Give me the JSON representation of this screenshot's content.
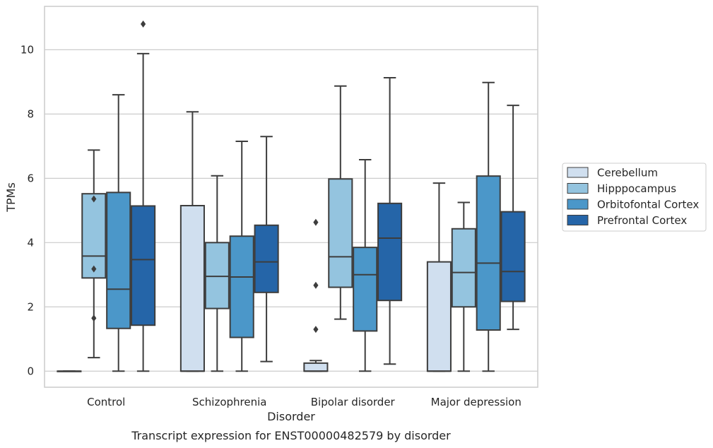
{
  "caption": "Transcript expression for ENST00000482579 by disorder",
  "chart_data": {
    "type": "box",
    "xlabel": "Disorder",
    "ylabel": "TPMs",
    "ylim": [
      -0.5,
      11.35
    ],
    "yticks": [
      0,
      2,
      4,
      6,
      8,
      10
    ],
    "grid": "horizontal",
    "legend_position": "right",
    "categories": [
      "Control",
      "Schizophrenia",
      "Bipolar disorder",
      "Major depression"
    ],
    "series": [
      {
        "name": "Cerebellum",
        "color": "#d0dfef",
        "boxes": [
          {
            "whislo": 0,
            "q1": 0,
            "med": 0,
            "q3": 0,
            "whishi": 0,
            "fliers": []
          },
          {
            "whislo": 0,
            "q1": 0,
            "med": 0,
            "q3": 5.15,
            "whishi": 8.07,
            "fliers": []
          },
          {
            "whislo": 0,
            "q1": 0,
            "med": 0,
            "q3": 0.25,
            "whishi": 0.33,
            "fliers": [
              1.3,
              2.67,
              4.63
            ]
          },
          {
            "whislo": 0,
            "q1": 0,
            "med": 0,
            "q3": 3.4,
            "whishi": 5.85,
            "fliers": []
          }
        ]
      },
      {
        "name": "Hipppocampus",
        "color": "#94c4df",
        "boxes": [
          {
            "whislo": 0.42,
            "q1": 2.9,
            "med": 3.58,
            "q3": 5.52,
            "whishi": 6.88,
            "fliers": [
              1.65,
              3.18,
              5.36
            ]
          },
          {
            "whislo": 0,
            "q1": 1.95,
            "med": 2.95,
            "q3": 4.0,
            "whishi": 6.08,
            "fliers": []
          },
          {
            "whislo": 1.62,
            "q1": 2.61,
            "med": 3.56,
            "q3": 5.98,
            "whishi": 8.87,
            "fliers": []
          },
          {
            "whislo": 0,
            "q1": 2.0,
            "med": 3.07,
            "q3": 4.43,
            "whishi": 5.25,
            "fliers": []
          }
        ]
      },
      {
        "name": "Orbitofontal Cortex",
        "color": "#4b97c9",
        "boxes": [
          {
            "whislo": 0,
            "q1": 1.33,
            "med": 2.55,
            "q3": 5.56,
            "whishi": 8.6,
            "fliers": []
          },
          {
            "whislo": 0,
            "q1": 1.05,
            "med": 2.93,
            "q3": 4.2,
            "whishi": 7.15,
            "fliers": []
          },
          {
            "whislo": 0,
            "q1": 1.25,
            "med": 3.0,
            "q3": 3.85,
            "whishi": 6.58,
            "fliers": []
          },
          {
            "whislo": 0,
            "q1": 1.28,
            "med": 3.36,
            "q3": 6.07,
            "whishi": 8.98,
            "fliers": []
          }
        ]
      },
      {
        "name": "Prefrontal Cortex",
        "color": "#2565a8",
        "boxes": [
          {
            "whislo": 0,
            "q1": 1.43,
            "med": 3.47,
            "q3": 5.14,
            "whishi": 9.88,
            "fliers": [
              10.8
            ]
          },
          {
            "whislo": 0.3,
            "q1": 2.45,
            "med": 3.4,
            "q3": 4.54,
            "whishi": 7.3,
            "fliers": []
          },
          {
            "whislo": 0.22,
            "q1": 2.2,
            "med": 4.14,
            "q3": 5.22,
            "whishi": 9.13,
            "fliers": []
          },
          {
            "whislo": 1.3,
            "q1": 2.17,
            "med": 3.1,
            "q3": 4.96,
            "whishi": 8.27,
            "fliers": []
          }
        ]
      }
    ]
  }
}
